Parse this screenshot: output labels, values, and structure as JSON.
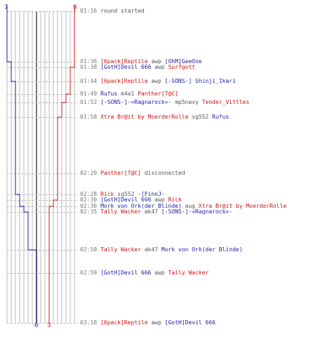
{
  "colors": {
    "blue_team": "#1a1aa8",
    "red_team": "#d01010",
    "grid": "#b8b8b8",
    "center": "#777777",
    "neutral": "#555555",
    "time": "#777777"
  },
  "scores": {
    "blue_start": "7",
    "red_start": "9",
    "blue_end": "0",
    "red_end": "3"
  },
  "events": [
    {
      "time": "01:16",
      "parts": [
        {
          "text": "round started",
          "team": "neutral"
        }
      ]
    },
    {
      "time": "01:36",
      "parts": [
        {
          "text": "[6pack]Reptile",
          "team": "red"
        },
        {
          "text": " awp ",
          "team": "neutral"
        },
        {
          "text": "[OhM]GeeOne",
          "team": "blue"
        }
      ]
    },
    {
      "time": "01:38",
      "parts": [
        {
          "text": "[GotH]Devil 666",
          "team": "blue"
        },
        {
          "text": " awp ",
          "team": "neutral"
        },
        {
          "text": "Surfgott",
          "team": "red"
        }
      ]
    },
    {
      "time": "01:44",
      "parts": [
        {
          "text": "[6pack]Reptile",
          "team": "red"
        },
        {
          "text": " awp ",
          "team": "neutral"
        },
        {
          "text": "[-SONS-] Shinji_Ikari",
          "team": "blue"
        }
      ]
    },
    {
      "time": "01:49",
      "parts": [
        {
          "text": "Rufus",
          "team": "blue"
        },
        {
          "text": " m4a1 ",
          "team": "neutral"
        },
        {
          "text": "Panther[T@C]",
          "team": "red"
        }
      ]
    },
    {
      "time": "01:52",
      "parts": [
        {
          "text": "[-SONS-]-=Ragnarock=-",
          "team": "blue"
        },
        {
          "text": " mp5navy ",
          "team": "neutral"
        },
        {
          "text": "Tender_Vittles",
          "team": "red"
        }
      ]
    },
    {
      "time": "01:58",
      "parts": [
        {
          "text": "Xtra Br@it by MoerderRolle",
          "team": "red"
        },
        {
          "text": " sg552 ",
          "team": "neutral"
        },
        {
          "text": "Rufus",
          "team": "blue"
        }
      ]
    },
    {
      "time": "02:20",
      "parts": [
        {
          "text": "Panther[T@C]",
          "team": "red"
        },
        {
          "text": " disconnected",
          "team": "neutral"
        }
      ]
    },
    {
      "time": "02:28",
      "parts": [
        {
          "text": "Rick",
          "team": "red"
        },
        {
          "text": " sg552 ",
          "team": "neutral"
        },
        {
          "text": "-[FinnJ-",
          "team": "blue"
        }
      ]
    },
    {
      "time": "02:30",
      "parts": [
        {
          "text": "[GotH]Devil 666",
          "team": "blue"
        },
        {
          "text": " awp ",
          "team": "neutral"
        },
        {
          "text": "Rick",
          "team": "red"
        }
      ]
    },
    {
      "time": "02:30",
      "parts": [
        {
          "text": "Mork von Ork(der Blinde)",
          "team": "blue"
        },
        {
          "text": " aug ",
          "team": "neutral"
        },
        {
          "text": "Xtra Br@it by MoerderRolle",
          "team": "red"
        }
      ]
    },
    {
      "time": "02:35",
      "parts": [
        {
          "text": "Tally Wacker",
          "team": "red"
        },
        {
          "text": " ak47 ",
          "team": "neutral"
        },
        {
          "text": "[-SONS-]-=Ragnarock=-",
          "team": "blue"
        }
      ]
    },
    {
      "time": "02:50",
      "parts": [
        {
          "text": "Tally Wacker",
          "team": "red"
        },
        {
          "text": " ak47 ",
          "team": "neutral"
        },
        {
          "text": "Mork von Ork(der Blinde)",
          "team": "blue"
        }
      ]
    },
    {
      "time": "02:59",
      "parts": [
        {
          "text": "[GotH]Devil 666",
          "team": "blue"
        },
        {
          "text": " awp ",
          "team": "neutral"
        },
        {
          "text": "Tally Wacker",
          "team": "red"
        }
      ]
    },
    {
      "time": "03:18",
      "parts": [
        {
          "text": "[6pack]Reptile",
          "team": "red"
        },
        {
          "text": " awp ",
          "team": "neutral"
        },
        {
          "text": "[GotH]Devil 666",
          "team": "blue"
        }
      ]
    }
  ]
}
